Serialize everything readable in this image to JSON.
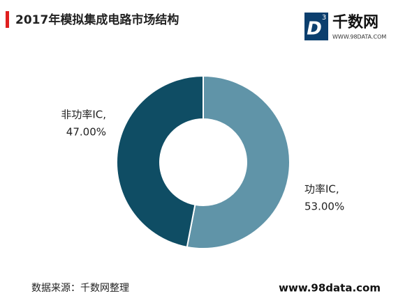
{
  "chart_data": {
    "type": "pie",
    "donut": true,
    "title": "2017年模拟集成电路市场结构",
    "categories": [
      "功率IC,",
      "非功率IC,"
    ],
    "values": [
      53,
      47
    ],
    "value_labels": [
      "53.00%",
      "47.00%"
    ],
    "colors": [
      "#6094a8",
      "#0f4d64"
    ]
  },
  "logo": {
    "mark": "D",
    "sup": "3",
    "name": "千数网",
    "url": "WWW.98DATA.COM"
  },
  "footer": {
    "source": "数据来源：千数网整理",
    "website": "www.98data.com"
  }
}
